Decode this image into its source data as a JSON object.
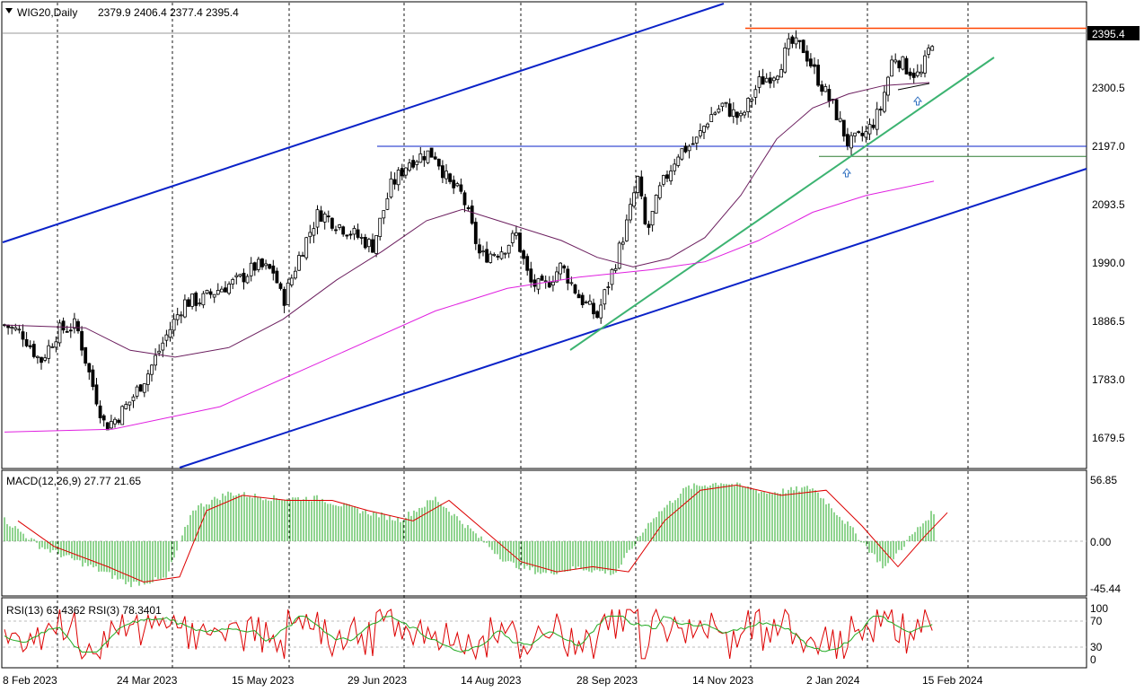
{
  "header": {
    "symbol_label": "WIG20,Daily",
    "ohlc_text": "2379.9 2406.4 2377.4 2395.4"
  },
  "main_pane": {
    "last_price_label": "2395.4",
    "price_ticks": [
      "2300.5",
      "2197.0",
      "2093.5",
      "1990.0",
      "1886.5",
      "1783.0",
      "1679.5"
    ]
  },
  "macd_pane": {
    "label": "MACD(12,26,9) 27.77 21.65",
    "ticks": [
      "56.85",
      "0.00",
      "-45.44"
    ]
  },
  "rsi_pane": {
    "label": "RSI(13) 63.4362  RSI(3) 78.3401",
    "ticks": [
      "100",
      "70",
      "30",
      "0"
    ]
  },
  "x_axis": {
    "labels": [
      "8 Feb 2023",
      "24 Mar 2023",
      "15 May 2023",
      "29 Jun 2023",
      "14 Aug 2023",
      "28 Sep 2023",
      "14 Nov 2023",
      "2 Jan 2024",
      "15 Feb 2024"
    ]
  },
  "colors": {
    "candle": "#000000",
    "channel_lines": "#0a22c8",
    "trend_line": "#3cb371",
    "resistance_line": "#ff4500",
    "ma_short": "#6b1e5e",
    "ma_long": "#e020e0",
    "macd_hist": "#22aa22",
    "macd_signal": "#dd0000",
    "rsi_13": "#22aa22",
    "rsi_3": "#dd0000"
  },
  "chart_data": {
    "type": "candlestick",
    "title": "WIG20,Daily",
    "x_range": [
      "8 Feb 2023",
      "15 Feb 2024"
    ],
    "y_range": [
      1627.75,
      2412
    ],
    "y_ticks": [
      1679.5,
      1783.0,
      1886.5,
      1990.0,
      2093.5,
      2197.0,
      2300.5
    ],
    "last": {
      "open": 2379.9,
      "high": 2406.4,
      "low": 2377.4,
      "close": 2395.4
    },
    "close_series": [
      [
        0,
        1880
      ],
      [
        20,
        1865
      ],
      [
        40,
        1815
      ],
      [
        60,
        1870
      ],
      [
        80,
        1880
      ],
      [
        95,
        1790
      ],
      [
        112,
        1700
      ],
      [
        125,
        1715
      ],
      [
        140,
        1745
      ],
      [
        160,
        1795
      ],
      [
        180,
        1860
      ],
      [
        200,
        1920
      ],
      [
        220,
        1925
      ],
      [
        240,
        1945
      ],
      [
        260,
        1958
      ],
      [
        280,
        1985
      ],
      [
        300,
        1975
      ],
      [
        310,
        1920
      ],
      [
        330,
        2010
      ],
      [
        350,
        2080
      ],
      [
        370,
        2060
      ],
      [
        390,
        2040
      ],
      [
        410,
        2020
      ],
      [
        430,
        2125
      ],
      [
        450,
        2170
      ],
      [
        470,
        2185
      ],
      [
        480,
        2182
      ],
      [
        495,
        2130
      ],
      [
        510,
        2110
      ],
      [
        530,
        2000
      ],
      [
        555,
        2015
      ],
      [
        570,
        2040
      ],
      [
        585,
        1955
      ],
      [
        600,
        1945
      ],
      [
        620,
        1985
      ],
      [
        640,
        1930
      ],
      [
        660,
        1895
      ],
      [
        680,
        1990
      ],
      [
        695,
        2070
      ],
      [
        705,
        2140
      ],
      [
        715,
        2040
      ],
      [
        730,
        2120
      ],
      [
        750,
        2185
      ],
      [
        770,
        2205
      ],
      [
        785,
        2250
      ],
      [
        800,
        2270
      ],
      [
        820,
        2245
      ],
      [
        840,
        2310
      ],
      [
        860,
        2330
      ],
      [
        875,
        2380
      ],
      [
        890,
        2370
      ],
      [
        905,
        2320
      ],
      [
        925,
        2260
      ],
      [
        940,
        2200
      ],
      [
        960,
        2220
      ],
      [
        975,
        2260
      ],
      [
        990,
        2360
      ],
      [
        1005,
        2335
      ],
      [
        1020,
        2320
      ],
      [
        1035,
        2395
      ]
    ],
    "series": [
      {
        "values": [
          [
            0,
            1690
          ],
          [
            120,
            1695
          ],
          [
            240,
            1735
          ],
          [
            360,
            1820
          ],
          [
            480,
            1905
          ],
          [
            560,
            1945
          ],
          [
            640,
            1965
          ],
          [
            720,
            1978
          ],
          [
            780,
            1992
          ],
          [
            840,
            2030
          ],
          [
            900,
            2080
          ],
          [
            960,
            2110
          ],
          [
            1035,
            2135
          ]
        ]
      },
      {
        "values": [
          [
            0,
            1880
          ],
          [
            90,
            1875
          ],
          [
            140,
            1835
          ],
          [
            190,
            1823
          ],
          [
            250,
            1840
          ],
          [
            310,
            1890
          ],
          [
            370,
            1960
          ],
          [
            420,
            2010
          ],
          [
            470,
            2065
          ],
          [
            510,
            2085
          ],
          [
            560,
            2060
          ],
          [
            620,
            2030
          ],
          [
            660,
            2000
          ],
          [
            700,
            1983
          ],
          [
            740,
            1998
          ],
          [
            780,
            2035
          ],
          [
            820,
            2110
          ],
          [
            860,
            2210
          ],
          [
            900,
            2265
          ],
          [
            940,
            2290
          ],
          [
            980,
            2305
          ],
          [
            1030,
            2310
          ]
        ]
      }
    ],
    "resistance_level": 2406.4,
    "support_levels": [
      2197.0,
      2179.0
    ],
    "indicators": [
      {
        "type": "macd",
        "params": "12,26,9",
        "values": {
          "macd": 27.77,
          "signal": 21.65
        },
        "y_ticks": [
          56.85,
          0.0,
          -45.44
        ],
        "series": [
          {
            "values": [
              [
                0,
                20
              ],
              [
                40,
                -5
              ],
              [
                100,
                -25
              ],
              [
                140,
                -40
              ],
              [
                180,
                -35
              ],
              [
                210,
                30
              ],
              [
                250,
                45
              ],
              [
                300,
                40
              ],
              [
                350,
                40
              ],
              [
                390,
                30
              ],
              [
                440,
                20
              ],
              [
                480,
                40
              ],
              [
                520,
                10
              ],
              [
                560,
                -20
              ],
              [
                600,
                -30
              ],
              [
                640,
                -25
              ],
              [
                680,
                -30
              ],
              [
                720,
                20
              ],
              [
                760,
                50
              ],
              [
                800,
                55
              ],
              [
                850,
                45
              ],
              [
                900,
                50
              ],
              [
                940,
                15
              ],
              [
                980,
                -25
              ],
              [
                1010,
                5
              ],
              [
                1035,
                28
              ]
            ]
          }
        ]
      },
      {
        "type": "rsi",
        "y_ticks": [
          100,
          70,
          30,
          0
        ],
        "values": {
          "rsi_13": 63.4362,
          "rsi_3": 78.3401
        }
      }
    ]
  }
}
